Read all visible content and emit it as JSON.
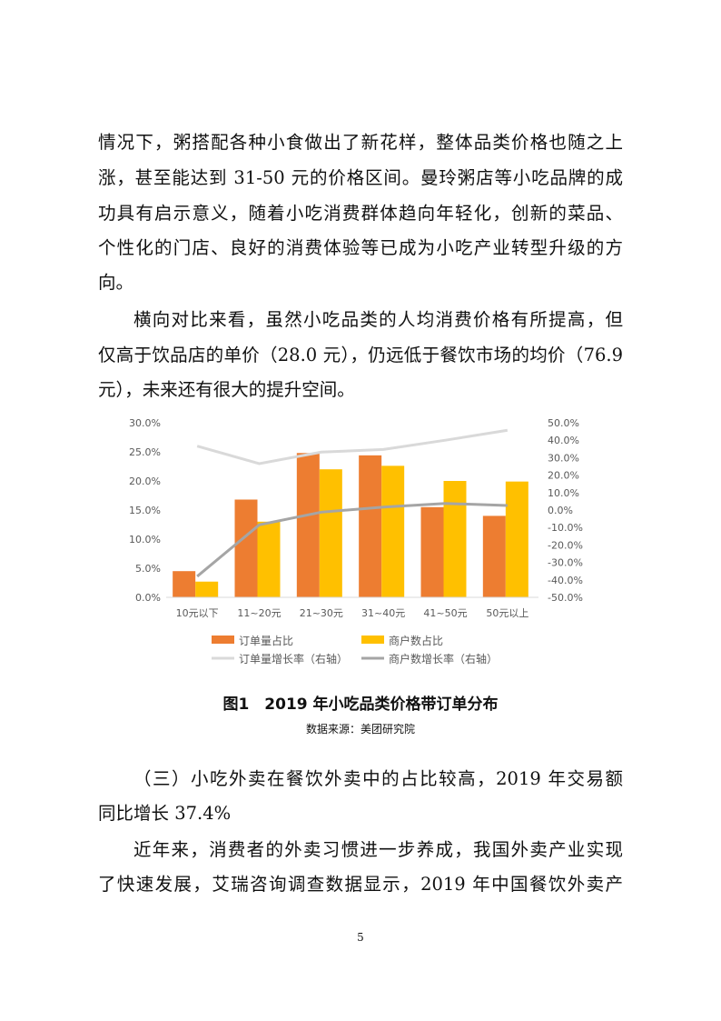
{
  "paragraphs": [
    {
      "indent": false,
      "lines": [
        "情况下，粥搭配各种小食做出了新花样，整体品类价格也随之上",
        "涨，甚至能达到 31-50 元的价格区间。曼玲粥店等小吃品牌的成",
        "功具有启示意义，随着小吃消费群体趋向年轻化，创新的菜品、",
        "个性化的门店、良好的消费体验等已成为小吃产业转型升级的方",
        "向。"
      ]
    },
    {
      "indent": true,
      "lines": [
        "横向对比来看，虽然小吃品类的人均消费价格有所提高，但",
        "仅高于饮品店的单价（28.0 元），仍远低于餐饮市场的均价（76.9",
        "元），未来还有很大的提升空间。"
      ]
    }
  ],
  "chart_data": {
    "type": "bar+line",
    "categories": [
      "10元以下",
      "11~20元",
      "21~30元",
      "31~40元",
      "41~50元",
      "50元以上"
    ],
    "y_left": {
      "ticks": [
        "0.0%",
        "5.0%",
        "10.0%",
        "15.0%",
        "20.0%",
        "25.0%",
        "30.0%"
      ],
      "ylim": [
        0,
        30
      ]
    },
    "y_right": {
      "ticks": [
        "-50.0%",
        "-40.0%",
        "-30.0%",
        "-20.0%",
        "-10.0%",
        "0.0%",
        "10.0%",
        "20.0%",
        "30.0%",
        "40.0%",
        "50.0%"
      ],
      "ylim": [
        -50,
        50
      ]
    },
    "series": [
      {
        "name": "订单量占比",
        "type": "bar",
        "axis": "left",
        "color": "#ED7D31",
        "values": [
          4.5,
          16.8,
          24.8,
          24.4,
          15.5,
          14.0
        ]
      },
      {
        "name": "商户数占比",
        "type": "bar",
        "axis": "left",
        "color": "#FFC000",
        "values": [
          2.7,
          13.0,
          22.0,
          22.6,
          20.0,
          19.9
        ]
      },
      {
        "name": "订单量增长率（右轴）",
        "type": "line",
        "axis": "right",
        "color": "#D9D9D9",
        "values": [
          36.6,
          26.6,
          33.2,
          34.7,
          40.0,
          45.7
        ]
      },
      {
        "name": "商户数增长率（右轴）",
        "type": "line",
        "axis": "right",
        "color": "#A5A5A5",
        "values": [
          -38.0,
          -8.5,
          -1.2,
          1.7,
          3.8,
          2.6
        ]
      }
    ],
    "legend": "bottom",
    "grid": false
  },
  "caption": {
    "title": "图1　2019 年小吃品类价格带订单分布",
    "source": "数据来源：美团研究院"
  },
  "section": {
    "heading_lines": [
      "（三）小吃外卖在餐饮外卖中的占比较高，2019 年交易额",
      "同比增长 37.4%"
    ],
    "body_lines": [
      "近年来，消费者的外卖习惯进一步养成，我国外卖产业实现",
      "了快速发展，艾瑞咨询调查数据显示，2019 年中国餐饮外卖产"
    ]
  },
  "page_number": "5"
}
